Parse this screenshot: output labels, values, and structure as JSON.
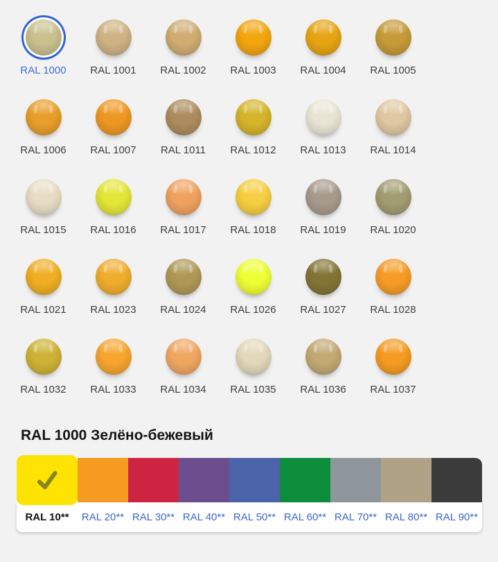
{
  "page": {
    "background": "#f2f2f3"
  },
  "palette_grid": {
    "selected_code": "RAL 1000",
    "items": [
      {
        "code": "RAL 1000",
        "color": "#c9c08e",
        "selected": true
      },
      {
        "code": "RAL 1001",
        "color": "#cfb284"
      },
      {
        "code": "RAL 1002",
        "color": "#cfac72"
      },
      {
        "code": "RAL 1003",
        "color": "#f2a50f"
      },
      {
        "code": "RAL 1004",
        "color": "#e5a413"
      },
      {
        "code": "RAL 1005",
        "color": "#c59a38"
      },
      {
        "code": "RAL 1006",
        "color": "#e89e2a"
      },
      {
        "code": "RAL 1007",
        "color": "#ee9723"
      },
      {
        "code": "RAL 1011",
        "color": "#ac8c5e"
      },
      {
        "code": "RAL 1012",
        "color": "#d5b42a"
      },
      {
        "code": "RAL 1013",
        "color": "#e9e5d5"
      },
      {
        "code": "RAL 1014",
        "color": "#dfc8a2"
      },
      {
        "code": "RAL 1015",
        "color": "#e7ddc6"
      },
      {
        "code": "RAL 1016",
        "color": "#e3e637"
      },
      {
        "code": "RAL 1017",
        "color": "#efa260"
      },
      {
        "code": "RAL 1018",
        "color": "#f5ce41"
      },
      {
        "code": "RAL 1019",
        "color": "#a79a8b"
      },
      {
        "code": "RAL 1020",
        "color": "#a29c72"
      },
      {
        "code": "RAL 1021",
        "color": "#efae24"
      },
      {
        "code": "RAL 1023",
        "color": "#efad2e"
      },
      {
        "code": "RAL 1024",
        "color": "#ae9857"
      },
      {
        "code": "RAL 1026",
        "color": "#eeff35"
      },
      {
        "code": "RAL 1027",
        "color": "#837436"
      },
      {
        "code": "RAL 1028",
        "color": "#f69c26"
      },
      {
        "code": "RAL 1032",
        "color": "#cdb235"
      },
      {
        "code": "RAL 1033",
        "color": "#f6a52f"
      },
      {
        "code": "RAL 1034",
        "color": "#efa661"
      },
      {
        "code": "RAL 1035",
        "color": "#e2d8ba"
      },
      {
        "code": "RAL 1036",
        "color": "#c2a873"
      },
      {
        "code": "RAL 1037",
        "color": "#f49b23"
      }
    ]
  },
  "detail": {
    "title": "RAL 1000 Зелёно-бежевый"
  },
  "series_tabs": {
    "selected": "RAL 10**",
    "items": [
      {
        "label": "RAL 10**",
        "color": "#ffe303",
        "selected": true
      },
      {
        "label": "RAL 20**",
        "color": "#f59b22"
      },
      {
        "label": "RAL 30**",
        "color": "#ce2442"
      },
      {
        "label": "RAL 40**",
        "color": "#6c4e8e"
      },
      {
        "label": "RAL 50**",
        "color": "#4a63a9"
      },
      {
        "label": "RAL 60**",
        "color": "#0d8c3c"
      },
      {
        "label": "RAL 70**",
        "color": "#8f969b"
      },
      {
        "label": "RAL 80**",
        "color": "#afa287"
      },
      {
        "label": "RAL 90**",
        "color": "#3b3b3b"
      }
    ]
  },
  "icons": {
    "selected_tab": "check-icon"
  },
  "colors": {
    "selection_ring": "#2e64d9",
    "link_blue": "#3a66d1",
    "label_gray": "#3e3e3e",
    "check_olive": "#8a871c"
  }
}
